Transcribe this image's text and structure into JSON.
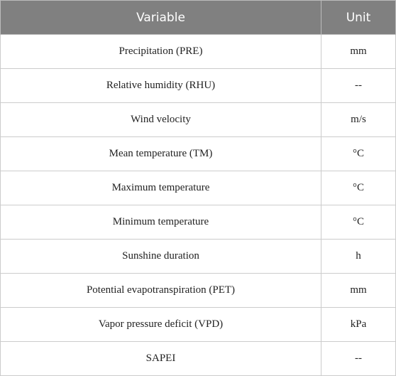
{
  "table": {
    "header": [
      "Variable",
      "Unit"
    ],
    "rows": [
      [
        "Precipitation (PRE)",
        "mm"
      ],
      [
        "Relative humidity (RHU)",
        "--"
      ],
      [
        "Wind velocity",
        "m/s"
      ],
      [
        "Mean temperature (TM)",
        "°C"
      ],
      [
        "Maximum temperature",
        "°C"
      ],
      [
        "Minimum temperature",
        "°C"
      ],
      [
        "Sunshine duration",
        "h"
      ],
      [
        "Potential evapotranspiration (PET)",
        "mm"
      ],
      [
        "Vapor pressure deficit (VPD)",
        "kPa"
      ],
      [
        "SAPEI",
        "--"
      ]
    ]
  }
}
